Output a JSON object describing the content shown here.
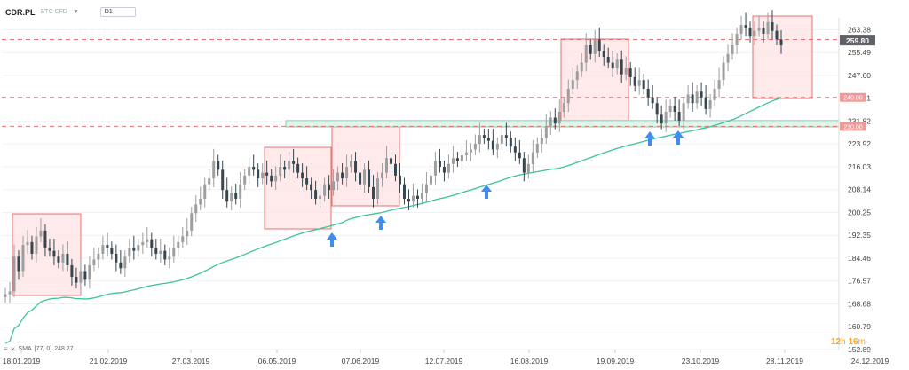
{
  "header": {
    "symbol": "CDR.PL",
    "description": "STC CFD",
    "timeframe": "D1"
  },
  "timer": {
    "hours": "12",
    "h": "h",
    "minutes": "16",
    "m": "m"
  },
  "legend": {
    "label": "SMA",
    "params": "[77, 0]",
    "value": "248.27",
    "icon": "indicator-icon"
  },
  "colors": {
    "up": "#9e9e9e",
    "down": "#37474f",
    "sma": "#3cc39a",
    "level_line": "#e57373",
    "level_label_bg": "#ef9a9a",
    "box_fill": "#fde3e3",
    "box_stroke": "#e57373",
    "zone_fill": "#e0f5ec",
    "zone_stroke": "#7fd3b1",
    "arrow": "#3d8ef0",
    "price_label_bg": "#5f6368"
  },
  "chart_data": {
    "type": "candlestick",
    "y_ticks": [
      "263.38",
      "255.49",
      "247.60",
      "239.71",
      "231.82",
      "223.92",
      "216.03",
      "208.14",
      "200.25",
      "192.35",
      "184.46",
      "176.57",
      "168.68",
      "160.79",
      "152.89"
    ],
    "ylim": [
      152.89,
      267.5
    ],
    "x_ticks": [
      "18.01.2019",
      "21.02.2019",
      "27.03.2019",
      "06.05.2019",
      "07.06.2019",
      "12.07.2019",
      "16.08.2019",
      "19.09.2019",
      "23.10.2019",
      "28.11.2019",
      "24.12.2019"
    ],
    "current_price": "259.80",
    "levels": [
      {
        "value": 260.0,
        "label": "260.00"
      },
      {
        "value": 240.0,
        "label": "240.00"
      },
      {
        "value": 230.0,
        "label": "230.00"
      }
    ],
    "zone": {
      "from": 229.8,
      "to": 232.0
    },
    "sma_period": 77,
    "sma_last": 248.27,
    "ohlc_closes": [
      172,
      173,
      185,
      180,
      189,
      190,
      186,
      192,
      194,
      188,
      187,
      185,
      183,
      186,
      182,
      178,
      176,
      180,
      177,
      182,
      184,
      186,
      189,
      188,
      186,
      183,
      181,
      185,
      188,
      187,
      189,
      190,
      191,
      188,
      186,
      187,
      184,
      185,
      188,
      190,
      192,
      194,
      200,
      203,
      205,
      210,
      212,
      218,
      215,
      208,
      204,
      207,
      205,
      210,
      213,
      216,
      215,
      212,
      214,
      213,
      211,
      213,
      216,
      215,
      218,
      217,
      214,
      212,
      210,
      208,
      205,
      206,
      210,
      208,
      211,
      214,
      212,
      216,
      218,
      214,
      210,
      215,
      209,
      205,
      212,
      214,
      219,
      217,
      213,
      210,
      205,
      204,
      206,
      205,
      207,
      210,
      213,
      218,
      216,
      214,
      217,
      219,
      218,
      220,
      221,
      222,
      224,
      227,
      226,
      225,
      222,
      224,
      227,
      226,
      223,
      221,
      219,
      214,
      217,
      221,
      224,
      226,
      230,
      233,
      231,
      235,
      238,
      243,
      246,
      249,
      252,
      258,
      255,
      260,
      256,
      254,
      252,
      250,
      253,
      248,
      250,
      247,
      244,
      246,
      243,
      240,
      238,
      234,
      231,
      235,
      237,
      235,
      232,
      238,
      241,
      238,
      242,
      240,
      236,
      239,
      243,
      246,
      252,
      255,
      258,
      262,
      265,
      264,
      261,
      263,
      264,
      262,
      266,
      263,
      260,
      258
    ]
  },
  "markers": {
    "arrows": 6,
    "boxes": 6
  }
}
